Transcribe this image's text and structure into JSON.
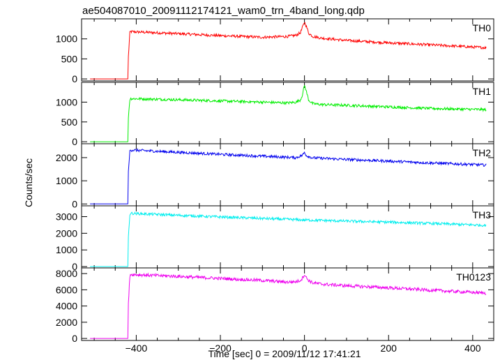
{
  "figure": {
    "title": "ae504087010_20091112174121_wam0_trn_4band_long.qdp",
    "ylabel": "Counts/sec",
    "xlabel": "Time [sec] 0 = 2009/11/12 17:41:21"
  },
  "chart_data": {
    "type": "line",
    "title": "ae504087010_20091112174121_wam0_trn_4band_long.qdp",
    "xlabel": "Time [sec] 0 = 2009/11/12 17:41:21",
    "ylabel": "Counts/sec",
    "xlim": [
      -530,
      450
    ],
    "x_ticks": [
      "−400",
      "−200",
      "0",
      "200",
      "400"
    ],
    "x_tick_values": [
      -400,
      -200,
      0,
      200,
      400
    ],
    "grid": false,
    "panels": [
      {
        "name": "TH0",
        "color": "#ff0000",
        "ylim": [
          -50,
          1500
        ],
        "y_ticks": [
          0,
          500,
          1000
        ],
        "x": [
          -510,
          -420,
          -419,
          -415,
          -300,
          -200,
          -100,
          -40,
          -20,
          -10,
          -5,
          0,
          5,
          10,
          20,
          40,
          100,
          200,
          300,
          430
        ],
        "values": [
          0,
          0,
          520,
          1180,
          1130,
          1080,
          1040,
          1060,
          1090,
          1150,
          1280,
          1420,
          1300,
          1140,
          1060,
          1020,
          960,
          900,
          850,
          780
        ]
      },
      {
        "name": "TH1",
        "color": "#00ee00",
        "ylim": [
          -50,
          1500
        ],
        "y_ticks": [
          0,
          500,
          1000
        ],
        "x": [
          -510,
          -420,
          -419,
          -415,
          -300,
          -200,
          -100,
          -40,
          -20,
          -10,
          -5,
          0,
          5,
          10,
          20,
          40,
          100,
          200,
          300,
          430
        ],
        "values": [
          0,
          0,
          600,
          1090,
          1060,
          1030,
          1000,
          980,
          1000,
          1050,
          1180,
          1430,
          1250,
          1050,
          960,
          940,
          920,
          880,
          840,
          810
        ]
      },
      {
        "name": "TH2",
        "color": "#0000ee",
        "ylim": [
          -80,
          2600
        ],
        "y_ticks": [
          0,
          1000,
          2000
        ],
        "x": [
          -510,
          -420,
          -419,
          -415,
          -300,
          -200,
          -100,
          -20,
          -5,
          0,
          5,
          20,
          100,
          200,
          300,
          430
        ],
        "values": [
          0,
          0,
          1300,
          2330,
          2230,
          2140,
          2060,
          2000,
          2100,
          2230,
          2080,
          1990,
          1920,
          1850,
          1770,
          1680
        ]
      },
      {
        "name": "TH3",
        "color": "#00eeee",
        "ylim": [
          -80,
          3650
        ],
        "y_ticks": [
          0,
          1000,
          2000,
          3000
        ],
        "x": [
          -510,
          -420,
          -419,
          -415,
          -300,
          -200,
          -100,
          0,
          100,
          200,
          300,
          430
        ],
        "values": [
          0,
          0,
          1700,
          3200,
          3080,
          2980,
          2890,
          2800,
          2730,
          2670,
          2590,
          2480
        ]
      },
      {
        "name": "TH0123",
        "color": "#ee00ee",
        "ylim": [
          -250,
          8700
        ],
        "y_ticks": [
          0,
          2000,
          4000,
          6000,
          8000
        ],
        "x": [
          -510,
          -420,
          -419,
          -415,
          -300,
          -200,
          -100,
          -40,
          -20,
          -10,
          -5,
          0,
          5,
          10,
          20,
          40,
          100,
          200,
          300,
          430
        ],
        "values": [
          0,
          0,
          4000,
          7900,
          7650,
          7400,
          7150,
          6950,
          7000,
          7150,
          7450,
          7900,
          7450,
          7150,
          6850,
          6700,
          6500,
          6250,
          5950,
          5600
        ]
      }
    ]
  }
}
